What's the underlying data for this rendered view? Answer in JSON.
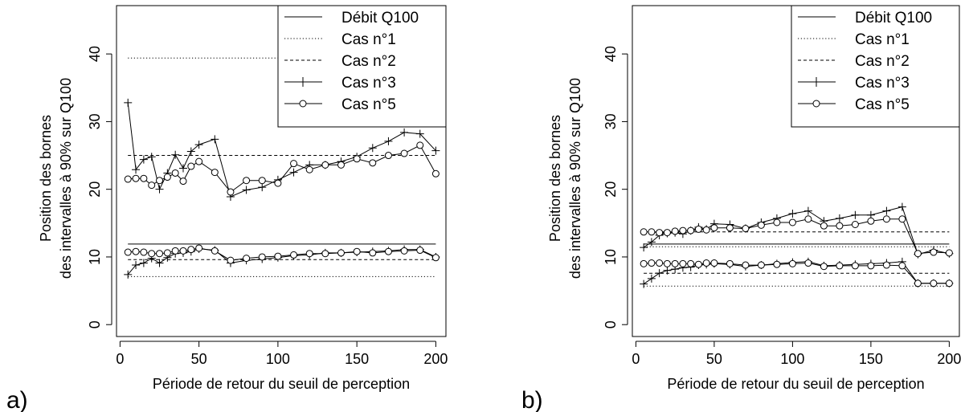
{
  "figure": {
    "panel_labels": [
      "a)",
      "b)"
    ]
  },
  "chart_data": [
    {
      "type": "line",
      "panel": "a)",
      "xlabel": "Période de retour du seuil de perception",
      "ylabel": [
        "Position des bornes",
        "des intervalles à 90% sur Q100"
      ],
      "xlim": [
        0,
        200
      ],
      "ylim": [
        0,
        45
      ],
      "xticks": [
        0,
        50,
        100,
        150,
        200
      ],
      "yticks": [
        0,
        10,
        20,
        30,
        40
      ],
      "legend_position": "top-right",
      "legend": [
        {
          "label": "Débit Q100",
          "style": "solid"
        },
        {
          "label": "Cas n°1",
          "style": "dotted"
        },
        {
          "label": "Cas n°2",
          "style": "dashed"
        },
        {
          "label": "Cas n°3",
          "style": "plus"
        },
        {
          "label": "Cas n°5",
          "style": "circle"
        }
      ],
      "series": [
        {
          "name": "Débit Q100",
          "style": "solid",
          "x": [
            5,
            200
          ],
          "y": [
            11.9,
            11.9
          ]
        },
        {
          "name": "Cas n°1",
          "style": "dotted",
          "x": [
            5,
            200
          ],
          "y": [
            39.4,
            39.4
          ]
        },
        {
          "name": "Cas n°1",
          "style": "dotted",
          "x": [
            5,
            200
          ],
          "y": [
            7.1,
            7.1
          ]
        },
        {
          "name": "Cas n°2",
          "style": "dashed",
          "x": [
            5,
            200
          ],
          "y": [
            25.0,
            25.0
          ]
        },
        {
          "name": "Cas n°2",
          "style": "dashed",
          "x": [
            5,
            200
          ],
          "y": [
            9.6,
            9.6
          ]
        },
        {
          "name": "Cas n°3",
          "style": "plus",
          "x": [
            5,
            10,
            15,
            20,
            25,
            30,
            35,
            40,
            45,
            50,
            60,
            70,
            80,
            90,
            100,
            110,
            120,
            130,
            140,
            150,
            160,
            170,
            180,
            190,
            200
          ],
          "y": [
            32.8,
            22.9,
            24.4,
            24.8,
            20.0,
            22.4,
            25.1,
            23.1,
            25.6,
            26.6,
            27.4,
            18.9,
            19.9,
            20.3,
            21.4,
            22.5,
            23.6,
            23.6,
            24.1,
            24.8,
            26.1,
            27.1,
            28.4,
            28.2,
            25.7
          ]
        },
        {
          "name": "Cas n°3",
          "style": "plus",
          "x": [
            5,
            10,
            15,
            20,
            25,
            30,
            35,
            40,
            45,
            50,
            60,
            70,
            80,
            90,
            100,
            110,
            120,
            130,
            140,
            150,
            160,
            170,
            180,
            190,
            200
          ],
          "y": [
            7.4,
            8.8,
            9.1,
            9.8,
            9.1,
            9.9,
            10.5,
            10.6,
            10.8,
            11.2,
            11.0,
            9.1,
            9.5,
            9.7,
            9.9,
            10.2,
            10.3,
            10.6,
            10.6,
            10.7,
            10.8,
            10.9,
            11.1,
            11.1,
            10.0
          ]
        },
        {
          "name": "Cas n°5",
          "style": "circle",
          "x": [
            5,
            10,
            15,
            20,
            25,
            30,
            35,
            40,
            45,
            50,
            60,
            70,
            80,
            90,
            100,
            110,
            120,
            130,
            140,
            150,
            160,
            170,
            180,
            190,
            200
          ],
          "y": [
            21.5,
            21.6,
            21.6,
            20.6,
            21.3,
            21.8,
            22.4,
            21.2,
            23.4,
            24.1,
            22.5,
            19.6,
            21.3,
            21.3,
            20.9,
            23.8,
            22.9,
            23.6,
            23.6,
            24.5,
            23.9,
            25.0,
            25.3,
            26.5,
            22.3
          ]
        },
        {
          "name": "Cas n°5",
          "style": "circle",
          "x": [
            5,
            10,
            15,
            20,
            25,
            30,
            35,
            40,
            45,
            50,
            60,
            70,
            80,
            90,
            100,
            110,
            120,
            130,
            140,
            150,
            160,
            170,
            180,
            190,
            200
          ],
          "y": [
            10.7,
            10.8,
            10.7,
            10.5,
            10.5,
            10.6,
            10.9,
            10.9,
            11.1,
            11.3,
            10.9,
            9.5,
            9.8,
            10.0,
            10.1,
            10.3,
            10.5,
            10.5,
            10.6,
            10.8,
            10.6,
            10.8,
            10.9,
            11.0,
            9.9
          ]
        }
      ]
    },
    {
      "type": "line",
      "panel": "b)",
      "xlabel": "Période de retour du seuil de perception",
      "ylabel": [
        "Position des bornes",
        "des intervalles à 90% sur Q100"
      ],
      "xlim": [
        0,
        200
      ],
      "ylim": [
        0,
        45
      ],
      "xticks": [
        0,
        50,
        100,
        150,
        200
      ],
      "yticks": [
        0,
        10,
        20,
        30,
        40
      ],
      "legend_position": "top-right",
      "legend": [
        {
          "label": "Débit Q100",
          "style": "solid"
        },
        {
          "label": "Cas n°1",
          "style": "dotted"
        },
        {
          "label": "Cas n°2",
          "style": "dashed"
        },
        {
          "label": "Cas n°3",
          "style": "plus"
        },
        {
          "label": "Cas n°5",
          "style": "circle"
        }
      ],
      "series": [
        {
          "name": "Débit Q100",
          "style": "solid",
          "x": [
            5,
            200
          ],
          "y": [
            11.9,
            11.9
          ]
        },
        {
          "name": "Cas n°1",
          "style": "dotted",
          "x": [
            5,
            200
          ],
          "y": [
            11.5,
            11.5
          ]
        },
        {
          "name": "Cas n°1",
          "style": "dotted",
          "x": [
            5,
            200
          ],
          "y": [
            5.7,
            5.7
          ]
        },
        {
          "name": "Cas n°2",
          "style": "dashed",
          "x": [
            5,
            200
          ],
          "y": [
            13.7,
            13.7
          ]
        },
        {
          "name": "Cas n°2",
          "style": "dashed",
          "x": [
            5,
            200
          ],
          "y": [
            7.6,
            7.6
          ]
        },
        {
          "name": "Cas n°3",
          "style": "plus",
          "x": [
            5,
            10,
            15,
            20,
            25,
            30,
            35,
            40,
            45,
            50,
            60,
            70,
            80,
            90,
            100,
            110,
            120,
            130,
            140,
            150,
            160,
            170,
            180,
            190,
            200
          ],
          "y": [
            11.4,
            12.2,
            13.2,
            13.5,
            13.6,
            13.4,
            13.9,
            14.4,
            14.1,
            14.9,
            14.8,
            14.2,
            15.1,
            15.7,
            16.4,
            16.8,
            15.3,
            15.7,
            16.2,
            16.2,
            16.8,
            17.4,
            10.4,
            11.0,
            10.5
          ]
        },
        {
          "name": "Cas n°3",
          "style": "plus",
          "x": [
            5,
            10,
            15,
            20,
            25,
            30,
            35,
            40,
            45,
            50,
            60,
            70,
            80,
            90,
            100,
            110,
            120,
            130,
            140,
            150,
            160,
            170,
            180,
            190,
            200
          ],
          "y": [
            6.0,
            6.8,
            7.6,
            8.0,
            8.2,
            8.4,
            8.5,
            8.8,
            8.9,
            9.0,
            8.9,
            8.6,
            8.8,
            9.0,
            9.2,
            9.3,
            8.7,
            8.8,
            8.9,
            9.0,
            9.1,
            9.3,
            6.1,
            6.1,
            6.1
          ]
        },
        {
          "name": "Cas n°5",
          "style": "circle",
          "x": [
            5,
            10,
            15,
            20,
            25,
            30,
            35,
            40,
            45,
            50,
            60,
            70,
            80,
            90,
            100,
            110,
            120,
            130,
            140,
            150,
            160,
            170,
            180,
            190,
            200
          ],
          "y": [
            13.7,
            13.7,
            13.6,
            13.6,
            13.8,
            13.9,
            13.9,
            14.1,
            14.0,
            14.3,
            14.3,
            14.2,
            14.7,
            15.1,
            15.1,
            15.6,
            14.6,
            14.6,
            14.8,
            15.3,
            15.6,
            15.6,
            10.5,
            10.7,
            10.6
          ]
        },
        {
          "name": "Cas n°5",
          "style": "circle",
          "x": [
            5,
            10,
            15,
            20,
            25,
            30,
            35,
            40,
            45,
            50,
            60,
            70,
            80,
            90,
            100,
            110,
            120,
            130,
            140,
            150,
            160,
            170,
            180,
            190,
            200
          ],
          "y": [
            9.0,
            9.1,
            9.1,
            9.0,
            9.0,
            9.0,
            9.0,
            8.9,
            9.1,
            9.1,
            9.0,
            8.8,
            8.8,
            8.9,
            9.0,
            9.1,
            8.6,
            8.7,
            8.7,
            8.7,
            8.8,
            8.7,
            6.1,
            6.1,
            6.1
          ]
        }
      ]
    }
  ]
}
